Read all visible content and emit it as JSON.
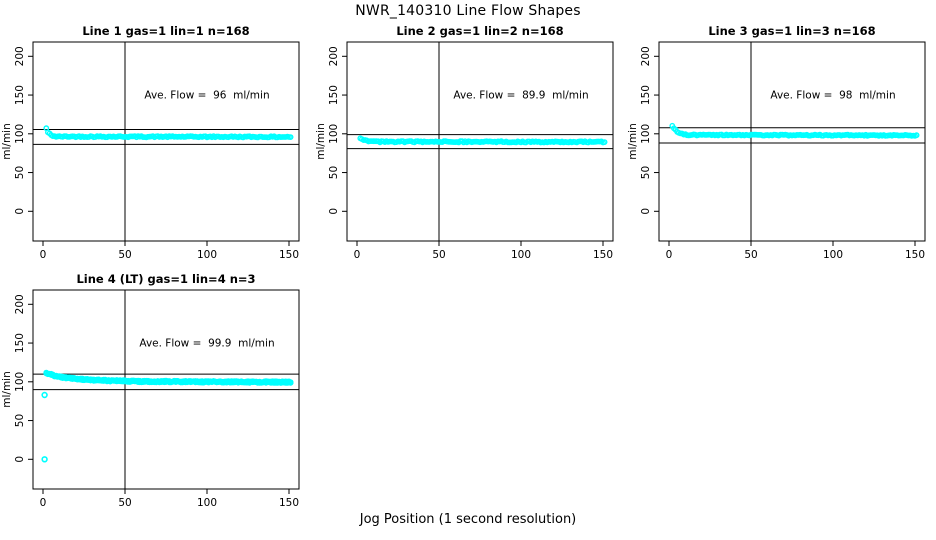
{
  "page": {
    "title": "NWR_140310  Line Flow Shapes",
    "xlabel": "Jog Position (1 second resolution)",
    "ylabel": "ml/min"
  },
  "colors": {
    "points": "#00FFFF",
    "axis": "#000000",
    "background": "#FFFFFF",
    "text": "#000000"
  },
  "chart_data": [
    {
      "type": "scatter",
      "title": "Line 1 gas=1 lin=1 n=168",
      "line": 1,
      "gas": 1,
      "lin": 1,
      "n": 168,
      "avg_flow_ml_min": 96,
      "annotation": "Ave. Flow =  96  ml/min",
      "annotation_at": [
        100,
        150
      ],
      "ylabel": "ml/min",
      "x_ticks": [
        0,
        50,
        100,
        150
      ],
      "y_ticks": [
        0,
        50,
        100,
        150,
        200
      ],
      "vline_x": 50,
      "hlines": [
        105.6,
        86.4
      ],
      "marker": "open-circle",
      "x_start": 2,
      "x_end": 151,
      "x_step": 1,
      "runs": 1,
      "jitter": 0.8,
      "series_keypoints": [
        [
          2,
          107
        ],
        [
          3,
          102
        ],
        [
          5,
          98
        ],
        [
          8,
          96.5
        ],
        [
          151,
          96
        ]
      ],
      "outlier_points": []
    },
    {
      "type": "scatter",
      "title": "Line 2 gas=1 lin=2 n=168",
      "line": 2,
      "gas": 1,
      "lin": 2,
      "n": 168,
      "avg_flow_ml_min": 89.9,
      "annotation": "Ave. Flow =  89.9  ml/min",
      "annotation_at": [
        100,
        150
      ],
      "ylabel": "ml/min",
      "x_ticks": [
        0,
        50,
        100,
        150
      ],
      "y_ticks": [
        0,
        50,
        100,
        150,
        200
      ],
      "vline_x": 50,
      "hlines": [
        98.9,
        80.9
      ],
      "marker": "open-circle",
      "x_start": 2,
      "x_end": 151,
      "x_step": 1,
      "runs": 1,
      "jitter": 0.8,
      "series_keypoints": [
        [
          2,
          94
        ],
        [
          4,
          92
        ],
        [
          7,
          90.5
        ],
        [
          12,
          89.8
        ],
        [
          151,
          89.5
        ]
      ],
      "outlier_points": []
    },
    {
      "type": "scatter",
      "title": "Line 3 gas=1 lin=3 n=168",
      "line": 3,
      "gas": 1,
      "lin": 3,
      "n": 168,
      "avg_flow_ml_min": 98,
      "annotation": "Ave. Flow =  98  ml/min",
      "annotation_at": [
        100,
        150
      ],
      "ylabel": "ml/min",
      "x_ticks": [
        0,
        50,
        100,
        150
      ],
      "y_ticks": [
        0,
        50,
        100,
        150,
        200
      ],
      "vline_x": 50,
      "hlines": [
        107.8,
        88.2
      ],
      "marker": "open-circle",
      "x_start": 2,
      "x_end": 151,
      "x_step": 1,
      "runs": 1,
      "jitter": 0.7,
      "series_keypoints": [
        [
          2,
          110
        ],
        [
          3,
          107
        ],
        [
          5,
          103
        ],
        [
          8,
          100
        ],
        [
          12,
          98.5
        ],
        [
          151,
          98
        ]
      ],
      "outlier_points": []
    },
    {
      "type": "scatter",
      "title": "Line 4 (LT) gas=1 lin=4 n=3",
      "line": 4,
      "gas": 1,
      "lin": 4,
      "n": 3,
      "avg_flow_ml_min": 99.9,
      "annotation": "Ave. Flow =  99.9  ml/min",
      "annotation_at": [
        100,
        150
      ],
      "ylabel": "ml/min",
      "x_ticks": [
        0,
        50,
        100,
        150
      ],
      "y_ticks": [
        0,
        50,
        100,
        150,
        200
      ],
      "vline_x": 50,
      "hlines": [
        109.9,
        89.9
      ],
      "marker": "open-circle",
      "x_start": 2,
      "x_end": 151,
      "x_step": 1,
      "runs": 3,
      "jitter": 1.1,
      "series_keypoints": [
        [
          2,
          111
        ],
        [
          4,
          110
        ],
        [
          8,
          107
        ],
        [
          15,
          105
        ],
        [
          25,
          103
        ],
        [
          40,
          101.5
        ],
        [
          60,
          100.5
        ],
        [
          100,
          100
        ],
        [
          151,
          99.5
        ]
      ],
      "outlier_points": [
        [
          1,
          0
        ],
        [
          1,
          83
        ]
      ]
    }
  ]
}
